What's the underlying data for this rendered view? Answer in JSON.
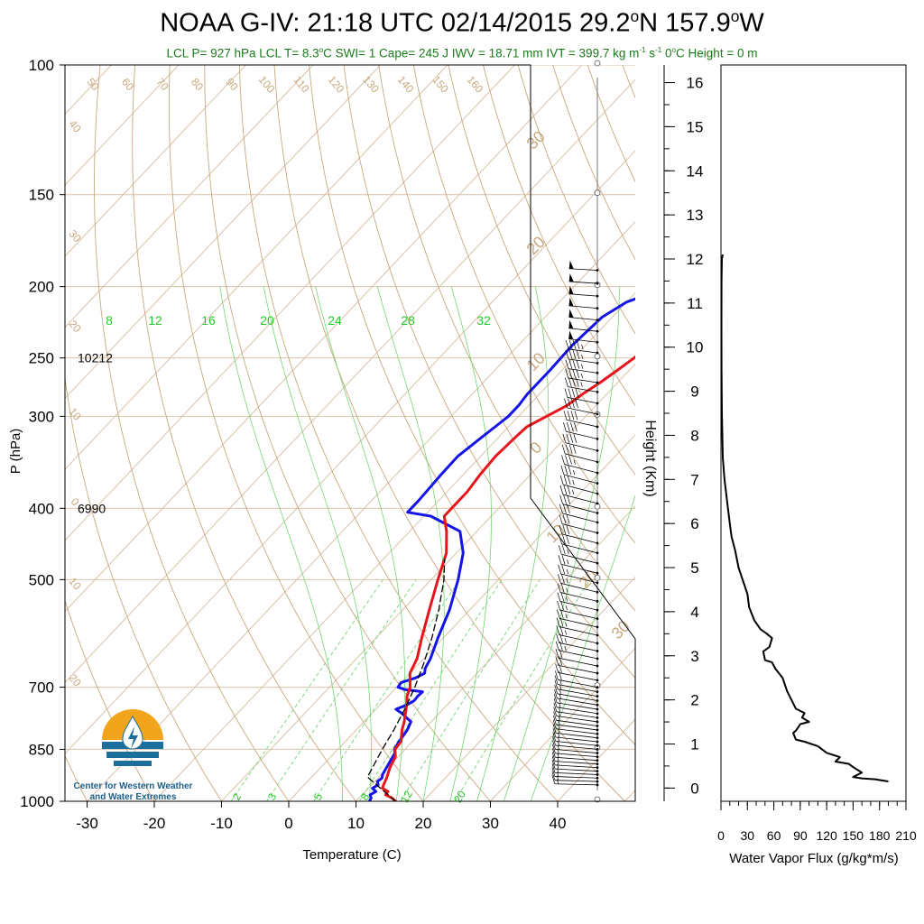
{
  "header": {
    "title_prefix": "NOAA G-IV: 21:18 UTC 02/14/2015  29.2",
    "title_lat_unit": "N 157.9",
    "title_lon_unit": "W",
    "title_deg": "o",
    "sub_1": "LCL P= 927 hPa  LCL T= 8.3",
    "sub_deg": "o",
    "sub_2": "C  SWI= 1  Cape= 245 J  IWV = 18.71 mm  IVT = 399.7 kg m",
    "sub_exp1": "-1",
    "sub_3": " s",
    "sub_exp2": "-1",
    "sub_4": "  0",
    "sub_deg2": "o",
    "sub_5": "C Height = 0 m"
  },
  "logo": {
    "line1": "Center for Western Weather",
    "line2": "and Water Extremes",
    "colors": {
      "sun": "#f2a51c",
      "water": "#1c6f9c"
    }
  },
  "chart_data": [
    {
      "type": "line",
      "name": "skew-t",
      "xlabel": "Temperature (C)",
      "ylabel": "P (hPa)",
      "xlim": [
        -33,
        50
      ],
      "ylim": [
        1000,
        100
      ],
      "y_scale": "log",
      "x_ticks": [
        -30,
        -20,
        -10,
        0,
        10,
        20,
        30,
        40
      ],
      "y_ticks": [
        100,
        150,
        200,
        250,
        300,
        400,
        500,
        700,
        850,
        1000
      ],
      "height_labels": [
        {
          "p": 250,
          "text": "10212"
        },
        {
          "p": 400,
          "text": "6990"
        }
      ],
      "dry_adiabat_labels": [
        "50",
        "60",
        "70",
        "80",
        "90",
        "100",
        "110",
        "120",
        "130",
        "140",
        "150",
        "160"
      ],
      "dry_adiabat_left_labels": [
        {
          "p": 122,
          "text": "40"
        },
        {
          "p": 172,
          "text": "30"
        },
        {
          "p": 228,
          "text": "20"
        },
        {
          "p": 300,
          "text": "10"
        },
        {
          "p": 395,
          "text": "0"
        },
        {
          "p": 510,
          "text": "10"
        },
        {
          "p": 690,
          "text": "20"
        }
      ],
      "isotherm_right_labels": [
        {
          "p": 128,
          "text": "30"
        },
        {
          "p": 178,
          "text": "20"
        },
        {
          "p": 256,
          "text": "10"
        },
        {
          "p": 335,
          "text": "0"
        },
        {
          "p": 438,
          "text": "10"
        },
        {
          "p": 505,
          "text": "20"
        },
        {
          "p": 592,
          "text": "30"
        }
      ],
      "mixing_ratio_labels": [
        "2",
        "3",
        "5",
        "8",
        "12",
        "20"
      ],
      "moist_adiabat_labels": [
        "8",
        "12",
        "16",
        "20",
        "24",
        "28",
        "32"
      ],
      "colors": {
        "temperature": "#e8141c",
        "dewpoint": "#1414e8",
        "parcel": "#000000",
        "dry": "#c8a87e",
        "moist": "#5fd35f",
        "mix": "#5fd35f",
        "grid": "#d9c2a8"
      },
      "series": [
        {
          "name": "dewpoint",
          "points": [
            [
              1000,
              12
            ],
            [
              990,
              11.8
            ],
            [
              980,
              11.2
            ],
            [
              970,
              11.6
            ],
            [
              960,
              10.6
            ],
            [
              950,
              11
            ],
            [
              940,
              10.4
            ],
            [
              930,
              10.6
            ],
            [
              920,
              10.2
            ],
            [
              900,
              9.8
            ],
            [
              880,
              9.4
            ],
            [
              860,
              9
            ],
            [
              850,
              8.4
            ],
            [
              830,
              8
            ],
            [
              800,
              7.6
            ],
            [
              780,
              7
            ],
            [
              760,
              4.5
            ],
            [
              750,
              3
            ],
            [
              740,
              4
            ],
            [
              730,
              4.5
            ],
            [
              720,
              4.4
            ],
            [
              710,
              4.5
            ],
            [
              705,
              1.5
            ],
            [
              700,
              0.2
            ],
            [
              690,
              0
            ],
            [
              680,
              1.5
            ],
            [
              670,
              2.2
            ],
            [
              660,
              1.6
            ],
            [
              640,
              1
            ],
            [
              600,
              -0.8
            ],
            [
              550,
              -3
            ],
            [
              500,
              -6
            ],
            [
              460,
              -9
            ],
            [
              430,
              -12.5
            ],
            [
              410,
              -19
            ],
            [
              405,
              -23
            ],
            [
              390,
              -23
            ],
            [
              360,
              -23.3
            ],
            [
              340,
              -23.4
            ],
            [
              320,
              -22.5
            ],
            [
              310,
              -22
            ],
            [
              300,
              -21.5
            ],
            [
              290,
              -21.5
            ],
            [
              280,
              -21.8
            ],
            [
              260,
              -21.8
            ],
            [
              240,
              -22
            ],
            [
              220,
              -21.5
            ],
            [
              210,
              -20
            ],
            [
              200,
              -16
            ],
            [
              195,
              -16
            ],
            [
              190,
              -17
            ]
          ]
        },
        {
          "name": "temperature",
          "points": [
            [
              1000,
              15.9
            ],
            [
              990,
              14.9
            ],
            [
              980,
              13.5
            ],
            [
              970,
              13.4
            ],
            [
              960,
              12.1
            ],
            [
              950,
              11.8
            ],
            [
              930,
              11.3
            ],
            [
              900,
              10.3
            ],
            [
              870,
              9.6
            ],
            [
              850,
              8.5
            ],
            [
              830,
              8.3
            ],
            [
              800,
              6.8
            ],
            [
              780,
              6
            ],
            [
              760,
              5
            ],
            [
              740,
              4
            ],
            [
              720,
              2.8
            ],
            [
              700,
              2
            ],
            [
              670,
              0
            ],
            [
              640,
              -1
            ],
            [
              600,
              -3.2
            ],
            [
              550,
              -6
            ],
            [
              500,
              -9
            ],
            [
              460,
              -11.5
            ],
            [
              430,
              -14.5
            ],
            [
              410,
              -17
            ],
            [
              400,
              -17
            ],
            [
              380,
              -17
            ],
            [
              360,
              -17.5
            ],
            [
              340,
              -17.8
            ],
            [
              320,
              -17.5
            ],
            [
              310,
              -17.3
            ],
            [
              300,
              -15.8
            ],
            [
              290,
              -14.3
            ],
            [
              280,
              -13.6
            ],
            [
              270,
              -12.6
            ],
            [
              260,
              -11.8
            ],
            [
              250,
              -11
            ],
            [
              240,
              -10.6
            ],
            [
              230,
              -9.6
            ],
            [
              220,
              -8.3
            ],
            [
              210,
              -7.3
            ],
            [
              200,
              -4.6
            ],
            [
              195,
              -3.2
            ],
            [
              190,
              -2.8
            ]
          ]
        },
        {
          "name": "parcel",
          "style": "dashed",
          "points": [
            [
              1000,
              15.9
            ],
            [
              927,
              8.3
            ],
            [
              850,
              6.6
            ],
            [
              800,
              5.6
            ],
            [
              750,
              4.3
            ],
            [
              700,
              2.7
            ],
            [
              650,
              0.7
            ],
            [
              600,
              -1.7
            ],
            [
              550,
              -4.6
            ],
            [
              500,
              -8.1
            ],
            [
              470,
              -10.8
            ]
          ]
        }
      ]
    },
    {
      "type": "barbs",
      "name": "wind-barbs",
      "levels": [
        190,
        198,
        206,
        214,
        222,
        230,
        238,
        246,
        254,
        262,
        270,
        278,
        288,
        298,
        310,
        322,
        334,
        346,
        358,
        370,
        382,
        394,
        406,
        418,
        432,
        446,
        460,
        475,
        490,
        505,
        520,
        535,
        550,
        565,
        580,
        595,
        610,
        625,
        640,
        655,
        670,
        685,
        700,
        710,
        720,
        730,
        740,
        750,
        760,
        770,
        780,
        790,
        800,
        810,
        820,
        830,
        840,
        850,
        860,
        870,
        880,
        890,
        900,
        910,
        920,
        930,
        940,
        950
      ],
      "speed_kt": [
        55,
        55,
        55,
        50,
        50,
        50,
        50,
        45,
        45,
        45,
        45,
        45,
        40,
        40,
        40,
        40,
        40,
        40,
        35,
        35,
        35,
        35,
        30,
        30,
        30,
        30,
        30,
        25,
        25,
        25,
        25,
        25,
        25,
        25,
        25,
        25,
        25,
        25,
        25,
        20,
        20,
        20,
        20,
        15,
        15,
        15,
        15,
        15,
        15,
        15,
        15,
        15,
        15,
        15,
        15,
        15,
        15,
        15,
        15,
        15,
        15,
        15,
        15,
        15,
        15,
        15,
        15,
        15
      ],
      "dir_deg": [
        280,
        282,
        284,
        286,
        288,
        290,
        292,
        294,
        296,
        298,
        300,
        305,
        310,
        315,
        320,
        325,
        330,
        335,
        340,
        345,
        350,
        352,
        354,
        356,
        358,
        0,
        2,
        4,
        6,
        8,
        10,
        12,
        14,
        16,
        18,
        20,
        22,
        24,
        26,
        28,
        30,
        32,
        34,
        36,
        38,
        40,
        42,
        44,
        46,
        48,
        50,
        52,
        54,
        56,
        58,
        60,
        62,
        64,
        66,
        68,
        70,
        72,
        74,
        76,
        78,
        80,
        82,
        84
      ]
    },
    {
      "type": "line",
      "name": "water-vapor-flux",
      "xlabel": "Water Vapor Flux (g/kg*m/s)",
      "ylabel": "Height (Km)",
      "xlim": [
        0,
        210
      ],
      "ylim": [
        -0.3,
        16.4
      ],
      "x_ticks": [
        0,
        30,
        60,
        90,
        120,
        150,
        180,
        210
      ],
      "y_ticks": [
        0,
        1,
        2,
        3,
        4,
        5,
        6,
        7,
        8,
        9,
        10,
        11,
        12,
        13,
        14,
        15,
        16
      ],
      "series": [
        {
          "name": "flux",
          "points": [
            [
              190,
              0.15
            ],
            [
              175,
              0.2
            ],
            [
              160,
              0.22
            ],
            [
              150,
              0.25
            ],
            [
              160,
              0.35
            ],
            [
              152,
              0.45
            ],
            [
              145,
              0.55
            ],
            [
              130,
              0.6
            ],
            [
              135,
              0.7
            ],
            [
              120,
              0.8
            ],
            [
              110,
              0.95
            ],
            [
              95,
              1.05
            ],
            [
              85,
              1.1
            ],
            [
              82,
              1.25
            ],
            [
              85,
              1.3
            ],
            [
              90,
              1.45
            ],
            [
              100,
              1.5
            ],
            [
              92,
              1.6
            ],
            [
              95,
              1.7
            ],
            [
              85,
              1.8
            ],
            [
              80,
              2
            ],
            [
              75,
              2.2
            ],
            [
              70,
              2.5
            ],
            [
              62,
              2.7
            ],
            [
              58,
              2.85
            ],
            [
              50,
              2.9
            ],
            [
              48,
              3.1
            ],
            [
              55,
              3.2
            ],
            [
              58,
              3.4
            ],
            [
              52,
              3.5
            ],
            [
              45,
              3.6
            ],
            [
              38,
              3.8
            ],
            [
              32,
              4.1
            ],
            [
              30,
              4.4
            ],
            [
              25,
              4.7
            ],
            [
              20,
              5
            ],
            [
              16,
              5.4
            ],
            [
              12,
              5.7
            ],
            [
              10,
              6
            ],
            [
              7,
              6.5
            ],
            [
              4,
              7
            ],
            [
              2,
              7.5
            ],
            [
              1,
              8.5
            ],
            [
              0.6,
              9.5
            ],
            [
              0.5,
              10.5
            ],
            [
              0.6,
              11.5
            ],
            [
              1,
              12
            ],
            [
              2,
              12.1
            ]
          ]
        }
      ]
    }
  ]
}
